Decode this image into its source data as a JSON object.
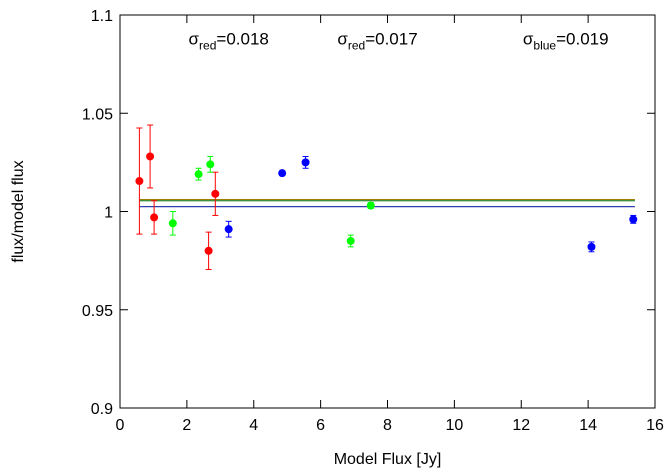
{
  "chart_data": {
    "type": "scatter",
    "xlabel": "Model Flux [Jy]",
    "ylabel": "flux/model flux",
    "xlim": [
      0,
      16
    ],
    "ylim": [
      0.9,
      1.1
    ],
    "x_ticks": [
      0,
      2,
      4,
      6,
      8,
      10,
      12,
      14,
      16
    ],
    "y_ticks": [
      0.9,
      0.95,
      1,
      1.05,
      1.1
    ],
    "x_tick_labels": [
      "0",
      "2",
      "4",
      "6",
      "8",
      "10",
      "12",
      "14",
      "16"
    ],
    "y_tick_labels": [
      "0.9",
      "0.95",
      "1",
      "1.05",
      "1.1"
    ],
    "grid": false,
    "annotations": [
      {
        "symbol": "σ",
        "sub": "red",
        "value": "=0.018",
        "anchor_x": 2.05,
        "anchor_y": 1.085
      },
      {
        "symbol": "σ",
        "sub": "red",
        "value": "=0.017",
        "anchor_x": 6.5,
        "anchor_y": 1.085
      },
      {
        "symbol": "σ",
        "sub": "blue",
        "value": "=0.019",
        "anchor_x": 12.05,
        "anchor_y": 1.085
      }
    ],
    "series": [
      {
        "color": "#ff0000",
        "points": [
          {
            "x": 0.58,
            "y": 1.0155,
            "err": 0.027
          },
          {
            "x": 0.9,
            "y": 1.028,
            "err": 0.016
          },
          {
            "x": 1.02,
            "y": 0.997,
            "err": 0.0085
          },
          {
            "x": 2.65,
            "y": 0.98,
            "err": 0.0095
          },
          {
            "x": 2.85,
            "y": 1.009,
            "err": 0.011
          }
        ],
        "fit_line": {
          "y": 1.006,
          "x_start": 0.58,
          "x_end": 15.4
        }
      },
      {
        "color": "#00ff00",
        "points": [
          {
            "x": 1.58,
            "y": 0.994,
            "err": 0.006
          },
          {
            "x": 2.35,
            "y": 1.019,
            "err": 0.003
          },
          {
            "x": 2.7,
            "y": 1.024,
            "err": 0.004
          },
          {
            "x": 6.9,
            "y": 0.985,
            "err": 0.003
          },
          {
            "x": 7.5,
            "y": 1.003,
            "err": 0.0015
          }
        ],
        "fit_line": {
          "y": 1.0055,
          "x_start": 0.58,
          "x_end": 15.4
        }
      },
      {
        "color": "#0000ff",
        "points": [
          {
            "x": 3.25,
            "y": 0.991,
            "err": 0.004
          },
          {
            "x": 4.85,
            "y": 1.0195,
            "err": 0.0012
          },
          {
            "x": 5.55,
            "y": 1.025,
            "err": 0.003
          },
          {
            "x": 14.1,
            "y": 0.982,
            "err": 0.0025
          },
          {
            "x": 15.35,
            "y": 0.996,
            "err": 0.002
          }
        ],
        "fit_line": {
          "y": 1.0025,
          "x_start": 0.58,
          "x_end": 15.4
        }
      }
    ],
    "fit_line_colors": {
      "red": "#a08000",
      "green": "#3f8f3f",
      "blue": "#3040b0"
    }
  }
}
